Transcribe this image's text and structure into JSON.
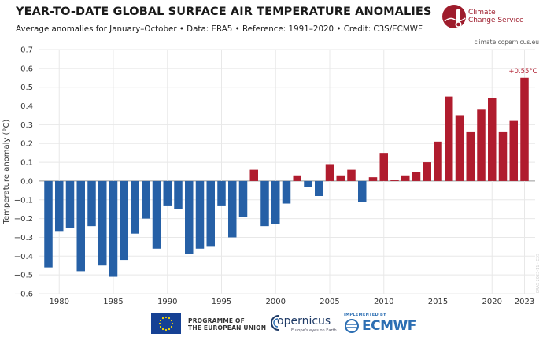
{
  "header": {
    "title": "YEAR-TO-DATE GLOBAL SURFACE AIR TEMPERATURE ANOMALIES",
    "subtitle": "Average anomalies for January–October • Data: ERA5 • Reference: 1991–2020 • Credit: C3S/ECMWF"
  },
  "brand": {
    "name_line1": "Climate",
    "name_line2": "Change Service",
    "url": "climate.copernicus.eu"
  },
  "footer": {
    "eu_line1": "PROGRAMME OF",
    "eu_line2": "THE EUROPEAN UNION",
    "copernicus": "opernicus",
    "copernicus_tagline": "Europe's eyes on Earth",
    "ecmwf_impl": "IMPLEMENTED BY",
    "ecmwf": "ECMWF",
    "watermark": "ERA5 2023-11 · C3S"
  },
  "colors": {
    "positive": "#b01c2e",
    "negative": "#2660a6",
    "grid": "#e8e8e8",
    "brand": "#9e1c2c"
  },
  "chart_data": {
    "type": "bar",
    "title": "YEAR-TO-DATE GLOBAL SURFACE AIR TEMPERATURE ANOMALIES",
    "ylabel": "Temperature anomaly (°C)",
    "xlabel": "",
    "ylim": [
      -0.6,
      0.7
    ],
    "yticks": [
      "0.7",
      "0.6",
      "0.5",
      "0.4",
      "0.3",
      "0.2",
      "0.1",
      "0.0",
      "−0.1",
      "−0.2",
      "−0.3",
      "−0.4",
      "−0.5",
      "−0.6"
    ],
    "ytick_values": [
      0.7,
      0.6,
      0.5,
      0.4,
      0.3,
      0.2,
      0.1,
      0.0,
      -0.1,
      -0.2,
      -0.3,
      -0.4,
      -0.5,
      -0.6
    ],
    "xticks": [
      "1980",
      "1985",
      "1990",
      "1995",
      "2000",
      "2005",
      "2010",
      "2015",
      "2020",
      "2023"
    ],
    "categories": [
      1979,
      1980,
      1981,
      1982,
      1983,
      1984,
      1985,
      1986,
      1987,
      1988,
      1989,
      1990,
      1991,
      1992,
      1993,
      1994,
      1995,
      1996,
      1997,
      1998,
      1999,
      2000,
      2001,
      2002,
      2003,
      2004,
      2005,
      2006,
      2007,
      2008,
      2009,
      2010,
      2011,
      2012,
      2013,
      2014,
      2015,
      2016,
      2017,
      2018,
      2019,
      2020,
      2021,
      2022,
      2023
    ],
    "values": [
      -0.46,
      -0.27,
      -0.25,
      -0.48,
      -0.24,
      -0.45,
      -0.51,
      -0.42,
      -0.28,
      -0.2,
      -0.36,
      -0.13,
      -0.15,
      -0.39,
      -0.36,
      -0.35,
      -0.13,
      -0.3,
      -0.19,
      0.06,
      -0.24,
      -0.23,
      -0.12,
      0.03,
      -0.03,
      -0.08,
      0.09,
      0.03,
      0.06,
      -0.11,
      0.02,
      0.15,
      0.005,
      0.03,
      0.05,
      0.1,
      0.21,
      0.45,
      0.35,
      0.26,
      0.38,
      0.44,
      0.26,
      0.32,
      0.55
    ],
    "annotation": "+0.55°C",
    "grid": true
  }
}
